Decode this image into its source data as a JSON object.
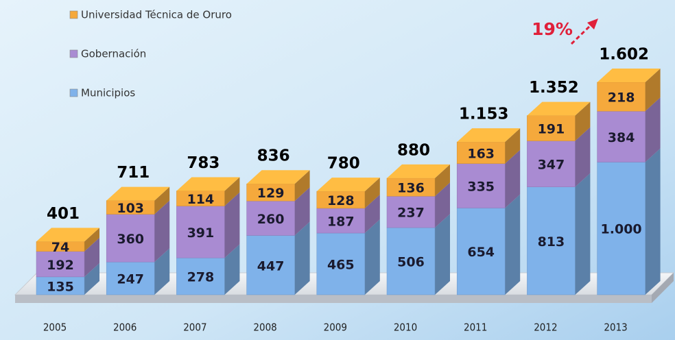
{
  "chart_data": {
    "type": "stacked-bar-3d",
    "categories": [
      "2005",
      "2006",
      "2007",
      "2008",
      "2009",
      "2010",
      "2011",
      "2012",
      "2013"
    ],
    "series": [
      {
        "name": "Municipios",
        "color": "#7fb2ea",
        "values": [
          135,
          247,
          278,
          447,
          465,
          506,
          654,
          813,
          1000
        ],
        "value_labels": [
          "135",
          "247",
          "278",
          "447",
          "465",
          "506",
          "654",
          "813",
          "1.000"
        ]
      },
      {
        "name": "Gobernación",
        "color": "#a98bd2",
        "values": [
          192,
          360,
          391,
          260,
          187,
          237,
          335,
          347,
          384
        ]
      },
      {
        "name": "Universidad Técnica de Oruro",
        "color": "#f5a93c",
        "values": [
          74,
          103,
          114,
          129,
          128,
          136,
          163,
          191,
          218
        ]
      }
    ],
    "totals": {
      "values": [
        401,
        711,
        783,
        836,
        780,
        880,
        1153,
        1352,
        1602
      ],
      "value_labels": [
        "401",
        "711",
        "783",
        "836",
        "780",
        "880",
        "1.153",
        "1.352",
        "1.602"
      ]
    },
    "annotation": "19%"
  }
}
